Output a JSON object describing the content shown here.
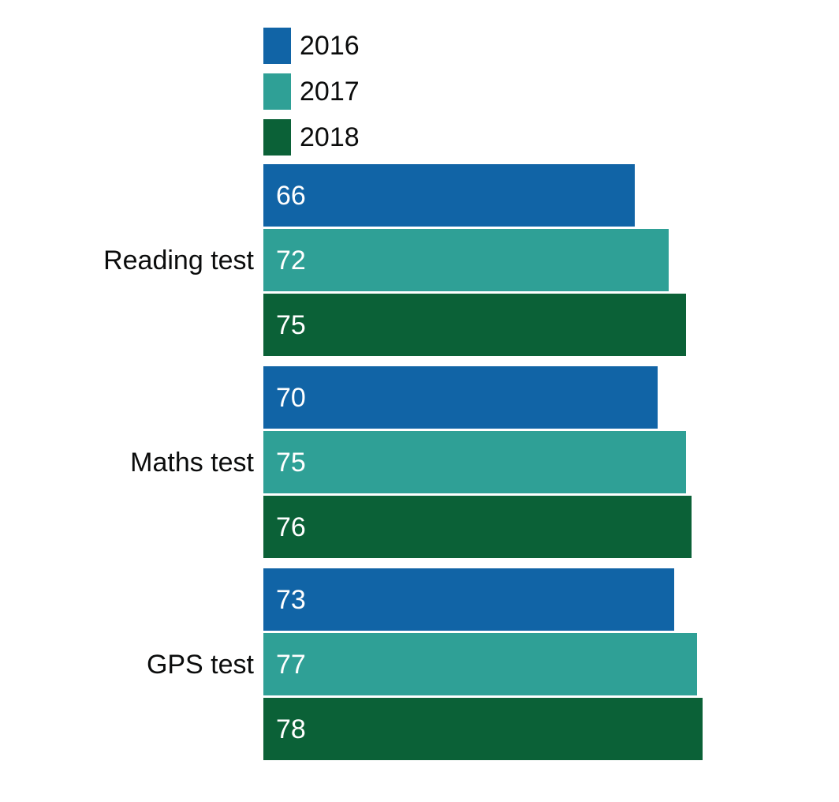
{
  "chart_data": {
    "type": "bar",
    "orientation": "horizontal",
    "title": "",
    "categories": [
      "Reading test",
      "Maths test",
      "GPS test"
    ],
    "series": [
      {
        "name": "2016",
        "color": "#1164a6",
        "values": [
          66,
          70,
          73
        ]
      },
      {
        "name": "2017",
        "color": "#2fa096",
        "values": [
          72,
          75,
          77
        ]
      },
      {
        "name": "2018",
        "color": "#0b6137",
        "values": [
          75,
          76,
          78
        ]
      }
    ],
    "xlim": [
      0,
      100
    ],
    "grid": false,
    "legend_position": "top-left",
    "value_labels": "inside-start",
    "value_label_color": "#ffffff",
    "label_color": "#0b0c0c",
    "background": "#ffffff"
  }
}
